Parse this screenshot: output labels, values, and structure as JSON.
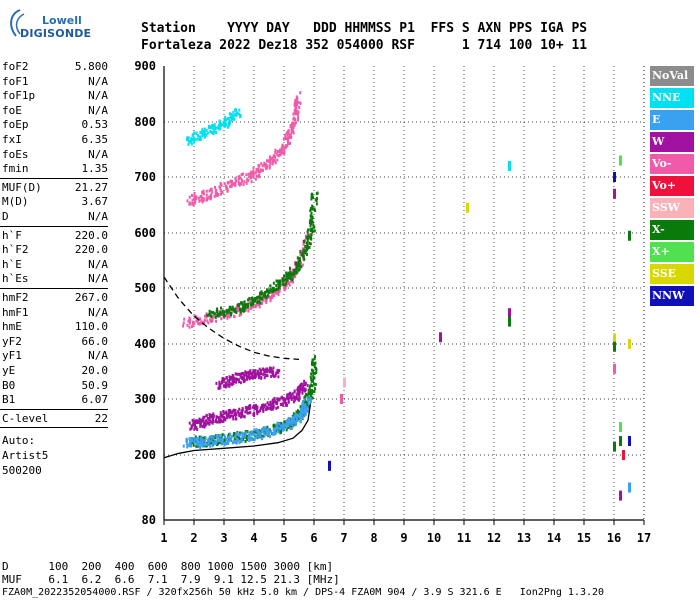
{
  "logo": {
    "line1": "Lowell",
    "line2": "DIGISONDE"
  },
  "header": {
    "line1": "Station    YYYY DAY   DDD HHMMSS P1  FFS S AXN PPS IGA PS",
    "line2": "Fortaleza 2022 Dez18 352 054000 RSF      1 714 100 10+ 11"
  },
  "params": [
    {
      "k": "foF2",
      "v": "5.800"
    },
    {
      "k": "foF1",
      "v": "N/A"
    },
    {
      "k": "foF1p",
      "v": "N/A"
    },
    {
      "k": "foE",
      "v": "N/A"
    },
    {
      "k": "foEp",
      "v": "0.53"
    },
    {
      "k": "fxI",
      "v": "6.35"
    },
    {
      "k": "foEs",
      "v": "N/A"
    },
    {
      "k": "fmin",
      "v": "1.35"
    },
    {
      "k": "MUF(D)",
      "v": "21.27"
    },
    {
      "k": "M(D)",
      "v": "3.67"
    },
    {
      "k": "D",
      "v": "N/A"
    },
    {
      "k": "h`F",
      "v": "220.0"
    },
    {
      "k": "h`F2",
      "v": "220.0"
    },
    {
      "k": "h`E",
      "v": "N/A"
    },
    {
      "k": "h`Es",
      "v": "N/A"
    },
    {
      "k": "hmF2",
      "v": "267.0"
    },
    {
      "k": "hmF1",
      "v": "N/A"
    },
    {
      "k": "hmE",
      "v": "110.0"
    },
    {
      "k": "yF2",
      "v": "66.0"
    },
    {
      "k": "yF1",
      "v": "N/A"
    },
    {
      "k": "yE",
      "v": "20.0"
    },
    {
      "k": "B0",
      "v": "50.9"
    },
    {
      "k": "B1",
      "v": "6.07"
    },
    {
      "k": "C-level",
      "v": "22"
    }
  ],
  "auto": {
    "l1": "Auto:",
    "l2": "Artist5",
    "l3": "500200"
  },
  "bottom": {
    "d_row": "D      100  200  400  600  800 1000 1500 3000 [km]",
    "muf_row": "MUF    6.1  6.2  6.6  7.1  7.9  9.1 12.5 21.3 [MHz]",
    "footer": "FZA0M_2022352054000.RSF / 320fx256h 50 kHz 5.0 km / DPS-4 FZA0M 904 / 3.9 S 321.6 E   Ion2Png 1.3.20"
  },
  "legend": [
    {
      "label": "NoVal",
      "color": "#8c8c8c"
    },
    {
      "label": "NNE",
      "color": "#00e0f0"
    },
    {
      "label": "E",
      "color": "#3aa0f0"
    },
    {
      "label": "W",
      "color": "#a0129f"
    },
    {
      "label": "Vo-",
      "color": "#f05aa8"
    },
    {
      "label": "Vo+",
      "color": "#f0103c"
    },
    {
      "label": "SSW",
      "color": "#f8b2b8"
    },
    {
      "label": "X-",
      "color": "#0a7a0a"
    },
    {
      "label": "X+",
      "color": "#50e050"
    },
    {
      "label": "SSE",
      "color": "#d8d800"
    },
    {
      "label": "NNW",
      "color": "#1010b8"
    }
  ],
  "chart_data": {
    "type": "scatter",
    "xlim": [
      1,
      17
    ],
    "ylim": [
      80,
      900
    ],
    "xticks": [
      1,
      2,
      3,
      4,
      5,
      6,
      7,
      8,
      9,
      10,
      11,
      12,
      13,
      14,
      15,
      16,
      17
    ],
    "yticks": [
      80,
      200,
      300,
      400,
      500,
      600,
      700,
      800,
      900
    ],
    "grid": true,
    "traces": [
      {
        "name": "W",
        "x": [
          1.9,
          2.3,
          2.8,
          3.3,
          3.9,
          4.5,
          5.0,
          5.4,
          5.7
        ],
        "y": [
          255,
          262,
          270,
          275,
          282,
          290,
          300,
          310,
          330
        ]
      },
      {
        "name": "X-",
        "x": [
          1.8,
          2.5,
          3.2,
          4.0,
          4.7,
          5.3,
          5.7,
          5.9,
          6.0
        ],
        "y": [
          225,
          228,
          232,
          238,
          248,
          262,
          290,
          320,
          380
        ]
      },
      {
        "name": "E",
        "x": [
          1.7,
          2.3,
          3.0,
          3.8,
          4.5,
          5.1,
          5.5,
          5.8
        ],
        "y": [
          222,
          226,
          230,
          236,
          244,
          256,
          272,
          300
        ]
      },
      {
        "name": "Vo-",
        "x": [
          1.7,
          2.5,
          3.3,
          4.0,
          4.6,
          5.1,
          5.5,
          5.8
        ],
        "y": [
          440,
          450,
          460,
          475,
          492,
          515,
          548,
          600
        ]
      },
      {
        "name": "X-",
        "x": [
          2.5,
          3.3,
          4.0,
          4.6,
          5.2,
          5.6,
          5.9,
          6.0
        ],
        "y": [
          455,
          465,
          480,
          500,
          525,
          560,
          610,
          680
        ]
      },
      {
        "name": "Vo-",
        "x": [
          1.8,
          2.5,
          3.2,
          3.9,
          4.5,
          5.0,
          5.3,
          5.5
        ],
        "y": [
          660,
          672,
          688,
          705,
          728,
          760,
          800,
          850
        ]
      },
      {
        "name": "NNE",
        "x": [
          1.8,
          2.4,
          3.0,
          3.5
        ],
        "y": [
          770,
          785,
          800,
          820
        ]
      },
      {
        "name": "W",
        "x": [
          2.8,
          3.3,
          3.8,
          4.3,
          4.8
        ],
        "y": [
          330,
          338,
          345,
          350,
          352
        ]
      }
    ],
    "solid_curve": {
      "x": [
        1.0,
        1.5,
        2.0,
        3.0,
        4.0,
        4.8,
        5.3,
        5.6,
        5.8,
        5.88
      ],
      "y": [
        195,
        203,
        208,
        212,
        216,
        222,
        230,
        244,
        262,
        290
      ]
    },
    "dashed_curve": {
      "x": [
        1.0,
        1.5,
        2.0,
        2.5,
        3.0,
        3.5,
        4.0,
        4.5,
        5.0,
        5.5
      ],
      "y": [
        520,
        480,
        450,
        428,
        410,
        396,
        385,
        378,
        374,
        372
      ]
    },
    "side_marks": [
      {
        "x": 12.5,
        "y": 720,
        "c": "#00e0f0"
      },
      {
        "x": 12.5,
        "y": 455,
        "c": "#a0129f"
      },
      {
        "x": 12.5,
        "y": 440,
        "c": "#0a7a0a"
      },
      {
        "x": 11.1,
        "y": 645,
        "c": "#d8d800"
      },
      {
        "x": 10.2,
        "y": 412,
        "c": "#a0129f"
      },
      {
        "x": 16.0,
        "y": 700,
        "c": "#1010b8"
      },
      {
        "x": 16.0,
        "y": 670,
        "c": "#a0129f"
      },
      {
        "x": 16.2,
        "y": 730,
        "c": "#50e050"
      },
      {
        "x": 16.5,
        "y": 595,
        "c": "#0a7a0a"
      },
      {
        "x": 16.0,
        "y": 410,
        "c": "#d8d800"
      },
      {
        "x": 16.0,
        "y": 395,
        "c": "#0a7a0a"
      },
      {
        "x": 16.0,
        "y": 355,
        "c": "#f05aa8"
      },
      {
        "x": 16.5,
        "y": 400,
        "c": "#d8d800"
      },
      {
        "x": 16.2,
        "y": 250,
        "c": "#50e050"
      },
      {
        "x": 16.2,
        "y": 225,
        "c": "#0a7a0a"
      },
      {
        "x": 16.5,
        "y": 225,
        "c": "#1010b8"
      },
      {
        "x": 16.0,
        "y": 215,
        "c": "#0a7a0a"
      },
      {
        "x": 16.3,
        "y": 200,
        "c": "#f0103c"
      },
      {
        "x": 16.5,
        "y": 140,
        "c": "#3aa0f0"
      },
      {
        "x": 16.2,
        "y": 125,
        "c": "#a0129f"
      },
      {
        "x": 6.9,
        "y": 300,
        "c": "#f05aa8"
      },
      {
        "x": 7.0,
        "y": 330,
        "c": "#f8b2b8"
      },
      {
        "x": 6.5,
        "y": 180,
        "c": "#1010b8"
      }
    ]
  }
}
